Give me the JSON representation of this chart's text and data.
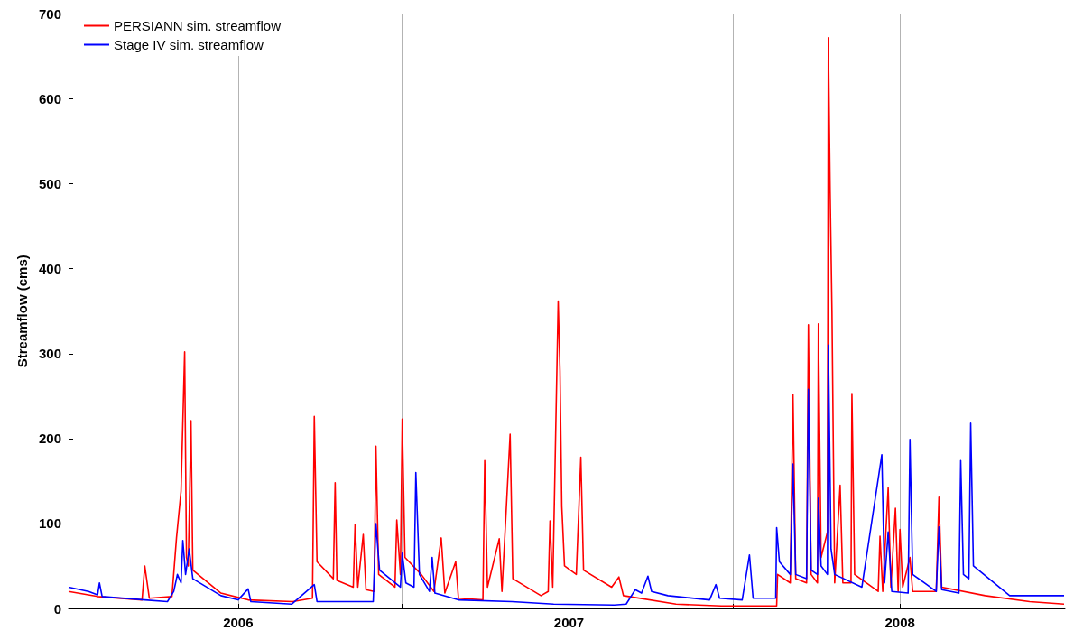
{
  "chart_data": {
    "type": "line",
    "ylabel": "Streamflow (cms)",
    "xlim": [
      "2005-06-28",
      "2008-07-01"
    ],
    "xticks": [
      {
        "value": "2006-01-01",
        "label": "2006"
      },
      {
        "value": "2006-07-01",
        "label": null
      },
      {
        "value": "2007-01-01",
        "label": "2007"
      },
      {
        "value": "2007-07-01",
        "label": null
      },
      {
        "value": "2008-01-01",
        "label": "2008"
      }
    ],
    "ylim": [
      0,
      700
    ],
    "yticks": [
      0,
      100,
      200,
      300,
      400,
      500,
      600,
      700
    ],
    "grid": "x",
    "legend": "top left",
    "series": [
      {
        "name": "PERSIANN sim. streamflow",
        "color": "#ff0000",
        "x": [
          "2005-06-28",
          "2005-07-30",
          "2005-09-17",
          "2005-09-20",
          "2005-09-25",
          "2005-10-20",
          "2005-10-25",
          "2005-10-30",
          "2005-11-03",
          "2005-11-05",
          "2005-11-07",
          "2005-11-10",
          "2005-11-12",
          "2005-12-13",
          "2006-01-12",
          "2006-03-02",
          "2006-03-24",
          "2006-03-26",
          "2006-03-29",
          "2006-04-16",
          "2006-04-18",
          "2006-04-20",
          "2006-05-08",
          "2006-05-10",
          "2006-05-13",
          "2006-05-19",
          "2006-05-22",
          "2006-05-31",
          "2006-06-02",
          "2006-06-05",
          "2006-06-23",
          "2006-06-25",
          "2006-06-29",
          "2006-07-01",
          "2006-07-04",
          "2006-07-22",
          "2006-08-05",
          "2006-08-13",
          "2006-08-17",
          "2006-08-29",
          "2006-09-01",
          "2006-09-28",
          "2006-09-30",
          "2006-10-03",
          "2006-10-16",
          "2006-10-19",
          "2006-10-28",
          "2006-10-31",
          "2006-12-01",
          "2006-12-09",
          "2006-12-11",
          "2006-12-14",
          "2006-12-20",
          "2006-12-22",
          "2006-12-24",
          "2006-12-27",
          "2007-01-09",
          "2007-01-14",
          "2007-01-17",
          "2007-02-17",
          "2007-02-25",
          "2007-03-02",
          "2007-04-29",
          "2007-06-18",
          "2007-08-18",
          "2007-08-19",
          "2007-09-02",
          "2007-09-05",
          "2007-09-08",
          "2007-09-20",
          "2007-09-22",
          "2007-09-25",
          "2007-10-02",
          "2007-10-03",
          "2007-10-06",
          "2007-10-13",
          "2007-10-14",
          "2007-10-16",
          "2007-10-18",
          "2007-10-21",
          "2007-10-27",
          "2007-10-30",
          "2007-11-08",
          "2007-11-09",
          "2007-11-12",
          "2007-12-08",
          "2007-12-10",
          "2007-12-13",
          "2007-12-19",
          "2007-12-22",
          "2007-12-27",
          "2007-12-30",
          "2008-01-01",
          "2008-01-04",
          "2008-01-12",
          "2008-01-15",
          "2008-02-10",
          "2008-02-13",
          "2008-02-16",
          "2008-04-04",
          "2008-05-23",
          "2008-06-30"
        ],
        "values": [
          20,
          14,
          10,
          50,
          12,
          14,
          83,
          138,
          302,
          60,
          50,
          221,
          45,
          18,
          10,
          8,
          12,
          226,
          55,
          35,
          148,
          33,
          25,
          99,
          25,
          87,
          22,
          20,
          191,
          40,
          25,
          104,
          40,
          223,
          60,
          40,
          20,
          83,
          18,
          55,
          12,
          10,
          174,
          25,
          82,
          20,
          205,
          35,
          15,
          20,
          103,
          25,
          362,
          280,
          120,
          50,
          40,
          178,
          45,
          25,
          37,
          15,
          5,
          3,
          3,
          40,
          30,
          252,
          35,
          30,
          334,
          40,
          30,
          335,
          60,
          90,
          672,
          490,
          350,
          30,
          145,
          30,
          30,
          253,
          40,
          20,
          85,
          20,
          142,
          25,
          118,
          20,
          93,
          25,
          60,
          20,
          20,
          131,
          25,
          15,
          8,
          5
        ]
      },
      {
        "name": "Stage IV sim. streamflow",
        "color": "#0000ff",
        "x": [
          "2005-06-28",
          "2005-07-20",
          "2005-07-30",
          "2005-08-01",
          "2005-08-04",
          "2005-09-20",
          "2005-10-15",
          "2005-10-22",
          "2005-10-26",
          "2005-10-30",
          "2005-11-01",
          "2005-11-04",
          "2005-11-08",
          "2005-11-12",
          "2005-12-13",
          "2006-01-01",
          "2006-01-12",
          "2006-01-15",
          "2006-03-01",
          "2006-03-26",
          "2006-03-29",
          "2006-05-30",
          "2006-06-02",
          "2006-06-06",
          "2006-06-29",
          "2006-07-01",
          "2006-07-05",
          "2006-07-14",
          "2006-07-16",
          "2006-07-20",
          "2006-07-31",
          "2006-08-03",
          "2006-08-06",
          "2006-09-01",
          "2006-10-30",
          "2006-12-15",
          "2007-02-20",
          "2007-03-05",
          "2007-03-15",
          "2007-03-22",
          "2007-03-29",
          "2007-04-02",
          "2007-04-20",
          "2007-06-05",
          "2007-06-12",
          "2007-06-16",
          "2007-07-11",
          "2007-07-19",
          "2007-07-23",
          "2007-08-17",
          "2007-08-18",
          "2007-08-21",
          "2007-09-02",
          "2007-09-05",
          "2007-09-08",
          "2007-09-20",
          "2007-09-22",
          "2007-09-25",
          "2007-10-02",
          "2007-10-03",
          "2007-10-06",
          "2007-10-13",
          "2007-10-14",
          "2007-10-17",
          "2007-10-21",
          "2007-11-20",
          "2007-12-12",
          "2007-12-15",
          "2007-12-19",
          "2007-12-23",
          "2008-01-10",
          "2008-01-12",
          "2008-01-15",
          "2008-02-10",
          "2008-02-13",
          "2008-02-16",
          "2008-03-06",
          "2008-03-08",
          "2008-03-11",
          "2008-03-17",
          "2008-03-19",
          "2008-03-22",
          "2008-05-01",
          "2008-06-30"
        ],
        "values": [
          25,
          20,
          16,
          30,
          14,
          10,
          8,
          20,
          40,
          30,
          80,
          40,
          70,
          35,
          15,
          10,
          23,
          8,
          5,
          28,
          8,
          8,
          100,
          45,
          25,
          65,
          30,
          25,
          160,
          40,
          20,
          60,
          18,
          10,
          8,
          5,
          4,
          5,
          22,
          18,
          38,
          20,
          15,
          10,
          28,
          12,
          10,
          63,
          12,
          12,
          95,
          55,
          40,
          170,
          40,
          35,
          258,
          45,
          40,
          130,
          50,
          40,
          310,
          70,
          40,
          25,
          181,
          30,
          90,
          20,
          18,
          199,
          40,
          20,
          96,
          22,
          18,
          174,
          40,
          35,
          218,
          50,
          15,
          15
        ]
      }
    ]
  }
}
